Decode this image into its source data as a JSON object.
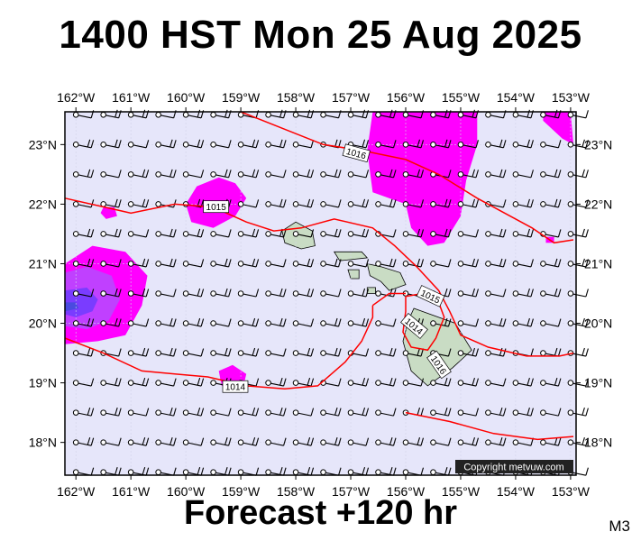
{
  "title": "1400 HST Mon 25 Aug 2025",
  "subtitle": "Forecast +120 hr",
  "model_tag": "M3",
  "copyright": "Copyright metvuw.com",
  "lon_labels": [
    "162°W",
    "161°W",
    "160°W",
    "159°W",
    "158°W",
    "157°W",
    "156°W",
    "155°W",
    "154°W",
    "153°W"
  ],
  "lat_labels": [
    "23°N",
    "22°N",
    "21°N",
    "20°N",
    "19°N",
    "18°N"
  ],
  "isobar_labels": [
    "1016",
    "1015",
    "1015",
    "1014",
    "1016",
    "1014"
  ],
  "colors": {
    "background": "#e6e6fa",
    "isobar": "#ff0000",
    "precip_light": "#ff00ff",
    "precip_medium": "#c040ff",
    "precip_heavy": "#7a3cff",
    "precip_core": "#4a4ae0",
    "land": "#c9dcc4"
  },
  "map_data": {
    "lon_range": [
      -162.2,
      -152.9
    ],
    "lat_range": [
      17.45,
      23.55
    ],
    "lon_ticks": [
      -162,
      -161,
      -160,
      -159,
      -158,
      -157,
      -156,
      -155,
      -154,
      -153
    ],
    "lat_ticks": [
      23,
      22,
      21,
      20,
      19,
      18
    ],
    "isobars": [
      {
        "label": "1016",
        "points": [
          [
            -159.0,
            23.55
          ],
          [
            -157.5,
            23.0
          ],
          [
            -156.8,
            22.9
          ],
          [
            -156.0,
            22.75
          ],
          [
            -155.4,
            22.5
          ],
          [
            -154.7,
            22.1
          ],
          [
            -154.2,
            21.85
          ],
          [
            -153.7,
            21.6
          ],
          [
            -153.3,
            21.35
          ],
          [
            -152.95,
            21.4
          ]
        ]
      },
      {
        "label": "1015",
        "points": [
          [
            -162.2,
            22.1
          ],
          [
            -161.0,
            21.85
          ],
          [
            -160.2,
            22.0
          ],
          [
            -159.5,
            21.95
          ],
          [
            -158.9,
            21.7
          ],
          [
            -158.4,
            21.55
          ],
          [
            -157.9,
            21.6
          ],
          [
            -157.3,
            21.75
          ],
          [
            -156.6,
            21.6
          ],
          [
            -156.2,
            21.3
          ],
          [
            -155.8,
            20.95
          ],
          [
            -155.4,
            20.55
          ],
          [
            -155.2,
            20.2
          ],
          [
            -155.0,
            19.8
          ],
          [
            -154.5,
            19.6
          ],
          [
            -153.8,
            19.45
          ],
          [
            -153.2,
            19.45
          ],
          [
            -152.95,
            19.5
          ]
        ]
      },
      {
        "label": "1015",
        "points": [
          [
            -156.0,
            20.45
          ],
          [
            -155.7,
            20.5
          ],
          [
            -155.4,
            20.35
          ],
          [
            -155.3,
            20.1
          ],
          [
            -155.45,
            19.75
          ],
          [
            -155.6,
            19.55
          ],
          [
            -155.9,
            19.6
          ],
          [
            -156.05,
            19.85
          ],
          [
            -156.0,
            20.2
          ],
          [
            -156.0,
            20.45
          ]
        ]
      },
      {
        "label": "1014",
        "points": [
          [
            -162.2,
            19.75
          ],
          [
            -161.5,
            19.5
          ],
          [
            -160.8,
            19.2
          ],
          [
            -160.2,
            19.15
          ],
          [
            -159.6,
            19.1
          ],
          [
            -158.9,
            18.95
          ],
          [
            -158.2,
            18.9
          ],
          [
            -157.6,
            18.95
          ],
          [
            -157.1,
            19.35
          ],
          [
            -156.8,
            19.7
          ],
          [
            -156.6,
            20.1
          ],
          [
            -156.6,
            20.3
          ]
        ]
      },
      {
        "label": "1014",
        "points": [
          [
            -156.6,
            20.3
          ],
          [
            -156.3,
            20.5
          ],
          [
            -156.0,
            20.5
          ]
        ]
      },
      {
        "label": "1016",
        "points": [
          [
            -156.0,
            18.5
          ],
          [
            -155.2,
            18.35
          ],
          [
            -154.4,
            18.15
          ],
          [
            -153.6,
            18.05
          ],
          [
            -152.95,
            18.1
          ]
        ]
      }
    ],
    "precip_areas": [
      {
        "level": "light",
        "points": [
          [
            -155.9,
            23.55
          ],
          [
            -154.7,
            23.55
          ],
          [
            -154.7,
            23.0
          ],
          [
            -154.9,
            22.4
          ],
          [
            -155.0,
            21.8
          ],
          [
            -155.3,
            21.35
          ],
          [
            -155.6,
            21.3
          ],
          [
            -155.9,
            21.6
          ],
          [
            -156.0,
            22.0
          ],
          [
            -156.6,
            22.2
          ],
          [
            -156.7,
            22.9
          ],
          [
            -156.6,
            23.55
          ]
        ]
      },
      {
        "level": "light",
        "points": [
          [
            -153.5,
            23.55
          ],
          [
            -153.0,
            23.55
          ],
          [
            -152.95,
            23.0
          ],
          [
            -153.15,
            23.1
          ],
          [
            -153.5,
            23.4
          ]
        ]
      },
      {
        "level": "light",
        "points": [
          [
            -160.0,
            22.0
          ],
          [
            -159.8,
            22.3
          ],
          [
            -159.4,
            22.45
          ],
          [
            -159.1,
            22.35
          ],
          [
            -158.9,
            22.1
          ],
          [
            -159.1,
            21.8
          ],
          [
            -159.5,
            21.6
          ],
          [
            -159.9,
            21.7
          ]
        ]
      },
      {
        "level": "light",
        "points": [
          [
            -161.5,
            21.95
          ],
          [
            -161.3,
            21.95
          ],
          [
            -161.25,
            21.8
          ],
          [
            -161.45,
            21.75
          ],
          [
            -161.55,
            21.85
          ]
        ]
      },
      {
        "level": "light",
        "points": [
          [
            -162.2,
            21.0
          ],
          [
            -161.7,
            21.3
          ],
          [
            -161.1,
            21.2
          ],
          [
            -160.7,
            20.8
          ],
          [
            -160.8,
            20.3
          ],
          [
            -161.1,
            19.8
          ],
          [
            -161.6,
            19.7
          ],
          [
            -162.2,
            19.65
          ]
        ]
      },
      {
        "level": "medium",
        "points": [
          [
            -162.2,
            20.85
          ],
          [
            -161.8,
            20.95
          ],
          [
            -161.35,
            20.8
          ],
          [
            -161.2,
            20.4
          ],
          [
            -161.4,
            20.05
          ],
          [
            -161.8,
            19.9
          ],
          [
            -162.2,
            19.95
          ]
        ]
      },
      {
        "level": "heavy",
        "points": [
          [
            -162.2,
            20.55
          ],
          [
            -161.8,
            20.6
          ],
          [
            -161.6,
            20.4
          ],
          [
            -161.7,
            20.2
          ],
          [
            -162.0,
            20.1
          ],
          [
            -162.2,
            20.15
          ]
        ]
      },
      {
        "level": "core",
        "points": [
          [
            -162.2,
            20.35
          ],
          [
            -162.0,
            20.35
          ],
          [
            -161.95,
            20.25
          ],
          [
            -162.2,
            20.2
          ]
        ]
      },
      {
        "level": "light",
        "points": [
          [
            -159.35,
            18.95
          ],
          [
            -158.95,
            18.95
          ],
          [
            -158.9,
            19.15
          ],
          [
            -159.15,
            19.3
          ],
          [
            -159.4,
            19.2
          ]
        ]
      },
      {
        "level": "light",
        "points": [
          [
            -153.45,
            21.45
          ],
          [
            -153.3,
            21.45
          ],
          [
            -153.3,
            21.35
          ],
          [
            -153.45,
            21.35
          ]
        ]
      }
    ],
    "islands": [
      {
        "name": "Oahu",
        "points": [
          [
            -158.25,
            21.55
          ],
          [
            -158.0,
            21.7
          ],
          [
            -157.7,
            21.55
          ],
          [
            -157.65,
            21.3
          ],
          [
            -157.9,
            21.25
          ],
          [
            -158.2,
            21.35
          ]
        ]
      },
      {
        "name": "Molokai",
        "points": [
          [
            -157.3,
            21.2
          ],
          [
            -156.8,
            21.2
          ],
          [
            -156.7,
            21.1
          ],
          [
            -157.2,
            21.05
          ]
        ]
      },
      {
        "name": "Lanai",
        "points": [
          [
            -157.05,
            20.9
          ],
          [
            -156.85,
            20.9
          ],
          [
            -156.85,
            20.75
          ],
          [
            -157.0,
            20.75
          ]
        ]
      },
      {
        "name": "Maui",
        "points": [
          [
            -156.7,
            21.0
          ],
          [
            -156.45,
            20.95
          ],
          [
            -156.1,
            20.85
          ],
          [
            -156.0,
            20.65
          ],
          [
            -156.3,
            20.55
          ],
          [
            -156.45,
            20.7
          ],
          [
            -156.65,
            20.8
          ]
        ]
      },
      {
        "name": "Kahoolawe",
        "points": [
          [
            -156.7,
            20.6
          ],
          [
            -156.55,
            20.6
          ],
          [
            -156.55,
            20.5
          ],
          [
            -156.7,
            20.5
          ]
        ]
      },
      {
        "name": "Hawaii",
        "points": [
          [
            -155.85,
            20.25
          ],
          [
            -155.1,
            20.0
          ],
          [
            -154.8,
            19.55
          ],
          [
            -155.15,
            19.25
          ],
          [
            -155.6,
            18.95
          ],
          [
            -155.9,
            19.2
          ],
          [
            -156.05,
            19.7
          ],
          [
            -155.95,
            20.05
          ]
        ]
      }
    ],
    "wind_grid": {
      "lon_start": -162.0,
      "lon_step": 0.5,
      "lon_count": 19,
      "lat_start": 23.5,
      "lat_step": -0.5,
      "lat_count": 13
    }
  }
}
